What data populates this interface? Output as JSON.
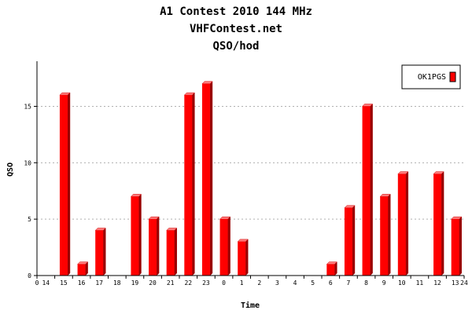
{
  "chart_data": {
    "type": "bar",
    "title": "A1 Contest 2010 144 MHz",
    "subtitle": "VHFContest.net",
    "subtitle2": "QSO/hod",
    "xlabel": "Time",
    "ylabel": "QSO",
    "ylim": [
      0,
      19
    ],
    "yticks": [
      0,
      5,
      10,
      15
    ],
    "grid": true,
    "legend": "top-right",
    "x_range": [
      0,
      24
    ],
    "x_end_labels": [
      "0",
      "24"
    ],
    "categories": [
      "14",
      "15",
      "16",
      "17",
      "18",
      "19",
      "20",
      "21",
      "22",
      "23",
      "0",
      "1",
      "2",
      "3",
      "4",
      "5",
      "6",
      "7",
      "8",
      "9",
      "10",
      "11",
      "12",
      "13"
    ],
    "series": [
      {
        "name": "OK1PGS",
        "color": "#ff0000",
        "values": [
          0,
          16,
          1,
          4,
          0,
          7,
          5,
          4,
          16,
          17,
          5,
          3,
          0,
          0,
          0,
          0,
          1,
          6,
          15,
          7,
          9,
          0,
          9,
          5
        ]
      }
    ]
  }
}
